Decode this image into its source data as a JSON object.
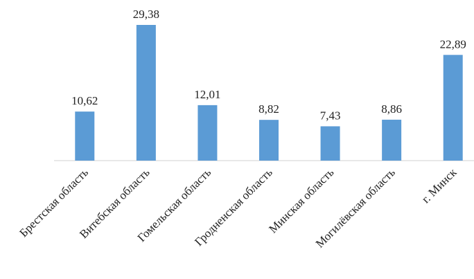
{
  "chart_data": {
    "type": "bar",
    "categories": [
      "Брестская область",
      "Витебская область",
      "Гомельская область",
      "Гродненская область",
      "Минская область",
      "Могилёвская область",
      "г. Минск"
    ],
    "values": [
      10.62,
      29.38,
      12.01,
      8.82,
      7.43,
      8.86,
      22.89
    ],
    "value_labels": [
      "10,62",
      "29,38",
      "12,01",
      "8,82",
      "7,43",
      "8,86",
      "22,89"
    ],
    "color": "#5b9bd5"
  }
}
